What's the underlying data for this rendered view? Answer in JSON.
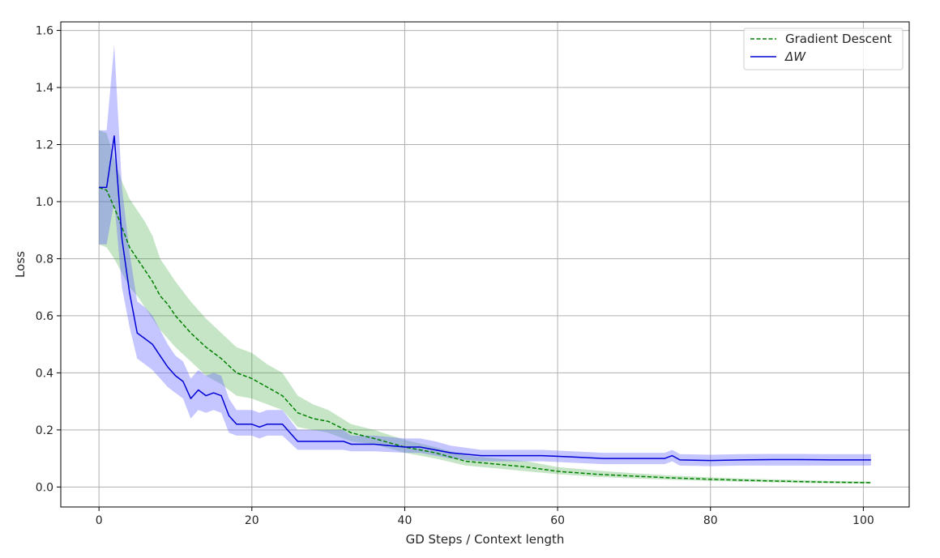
{
  "chart_data": {
    "type": "line",
    "title": "",
    "xlabel": "GD Steps / Context length",
    "ylabel": "Loss",
    "xlim": [
      -5,
      106
    ],
    "ylim": [
      -0.07,
      1.63
    ],
    "xticks": [
      0,
      20,
      40,
      60,
      80,
      100
    ],
    "yticks": [
      0.0,
      0.2,
      0.4,
      0.6,
      0.8,
      1.0,
      1.2,
      1.4,
      1.6
    ],
    "xtick_labels": [
      "0",
      "20",
      "40",
      "60",
      "80",
      "100"
    ],
    "ytick_labels": [
      "0.0",
      "0.2",
      "0.4",
      "0.6",
      "0.8",
      "1.0",
      "1.2",
      "1.4",
      "1.6"
    ],
    "grid": true,
    "legend_position": "top-right",
    "series": [
      {
        "name": "Gradient Descent",
        "style": "dashed",
        "color": "#008000",
        "band_color": "#2ca02c",
        "x": [
          0,
          1,
          2,
          3,
          4,
          5,
          6,
          7,
          8,
          9,
          10,
          12,
          14,
          16,
          18,
          20,
          22,
          24,
          26,
          28,
          30,
          33,
          36,
          40,
          44,
          48,
          52,
          56,
          60,
          65,
          70,
          75,
          80,
          85,
          90,
          95,
          101
        ],
        "y": [
          1.05,
          1.04,
          0.98,
          0.91,
          0.84,
          0.8,
          0.76,
          0.72,
          0.67,
          0.64,
          0.6,
          0.54,
          0.49,
          0.45,
          0.4,
          0.38,
          0.35,
          0.32,
          0.26,
          0.24,
          0.23,
          0.19,
          0.17,
          0.14,
          0.12,
          0.09,
          0.08,
          0.07,
          0.055,
          0.045,
          0.038,
          0.032,
          0.027,
          0.023,
          0.02,
          0.017,
          0.015
        ],
        "lower": [
          0.85,
          0.84,
          0.8,
          0.75,
          0.7,
          0.67,
          0.63,
          0.59,
          0.55,
          0.52,
          0.49,
          0.44,
          0.39,
          0.36,
          0.32,
          0.31,
          0.29,
          0.27,
          0.21,
          0.2,
          0.19,
          0.16,
          0.15,
          0.12,
          0.1,
          0.075,
          0.065,
          0.055,
          0.045,
          0.036,
          0.03,
          0.025,
          0.021,
          0.018,
          0.015,
          0.013,
          0.012
        ],
        "upper": [
          1.25,
          1.24,
          1.15,
          1.07,
          1.01,
          0.97,
          0.93,
          0.88,
          0.8,
          0.76,
          0.72,
          0.65,
          0.59,
          0.54,
          0.49,
          0.47,
          0.43,
          0.4,
          0.32,
          0.29,
          0.27,
          0.22,
          0.2,
          0.165,
          0.14,
          0.11,
          0.1,
          0.09,
          0.07,
          0.058,
          0.048,
          0.04,
          0.034,
          0.029,
          0.026,
          0.022,
          0.019
        ]
      },
      {
        "name": "ΔW",
        "style": "solid",
        "color": "#0000d6",
        "band_color": "#6666ff",
        "x": [
          0,
          1,
          2,
          3,
          4,
          5,
          6,
          7,
          8,
          9,
          10,
          11,
          12,
          13,
          14,
          15,
          16,
          17,
          18,
          19,
          20,
          21,
          22,
          24,
          26,
          28,
          30,
          32,
          33,
          36,
          40,
          42,
          44,
          46,
          50,
          54,
          58,
          62,
          66,
          70,
          74,
          75,
          76,
          80,
          84,
          88,
          92,
          96,
          101
        ],
        "y": [
          1.05,
          1.05,
          1.23,
          0.87,
          0.68,
          0.54,
          0.52,
          0.5,
          0.46,
          0.42,
          0.39,
          0.37,
          0.31,
          0.34,
          0.32,
          0.33,
          0.32,
          0.25,
          0.22,
          0.22,
          0.22,
          0.21,
          0.22,
          0.22,
          0.16,
          0.16,
          0.16,
          0.16,
          0.15,
          0.15,
          0.14,
          0.14,
          0.13,
          0.12,
          0.11,
          0.11,
          0.11,
          0.105,
          0.1,
          0.1,
          0.1,
          0.11,
          0.095,
          0.093,
          0.095,
          0.096,
          0.096,
          0.095,
          0.095
        ],
        "lower": [
          0.85,
          0.85,
          1.0,
          0.7,
          0.56,
          0.45,
          0.43,
          0.41,
          0.38,
          0.35,
          0.33,
          0.31,
          0.24,
          0.27,
          0.26,
          0.27,
          0.26,
          0.19,
          0.18,
          0.18,
          0.18,
          0.17,
          0.18,
          0.18,
          0.13,
          0.13,
          0.13,
          0.13,
          0.125,
          0.125,
          0.12,
          0.12,
          0.11,
          0.1,
          0.09,
          0.09,
          0.09,
          0.085,
          0.08,
          0.08,
          0.08,
          0.09,
          0.075,
          0.073,
          0.075,
          0.075,
          0.075,
          0.075,
          0.075
        ],
        "upper": [
          1.25,
          1.25,
          1.55,
          1.05,
          0.82,
          0.65,
          0.63,
          0.6,
          0.55,
          0.5,
          0.46,
          0.44,
          0.38,
          0.41,
          0.39,
          0.4,
          0.39,
          0.31,
          0.27,
          0.27,
          0.27,
          0.26,
          0.27,
          0.27,
          0.2,
          0.2,
          0.2,
          0.2,
          0.18,
          0.18,
          0.17,
          0.17,
          0.16,
          0.145,
          0.13,
          0.13,
          0.13,
          0.125,
          0.12,
          0.12,
          0.12,
          0.13,
          0.115,
          0.113,
          0.115,
          0.116,
          0.116,
          0.115,
          0.115
        ]
      }
    ]
  }
}
